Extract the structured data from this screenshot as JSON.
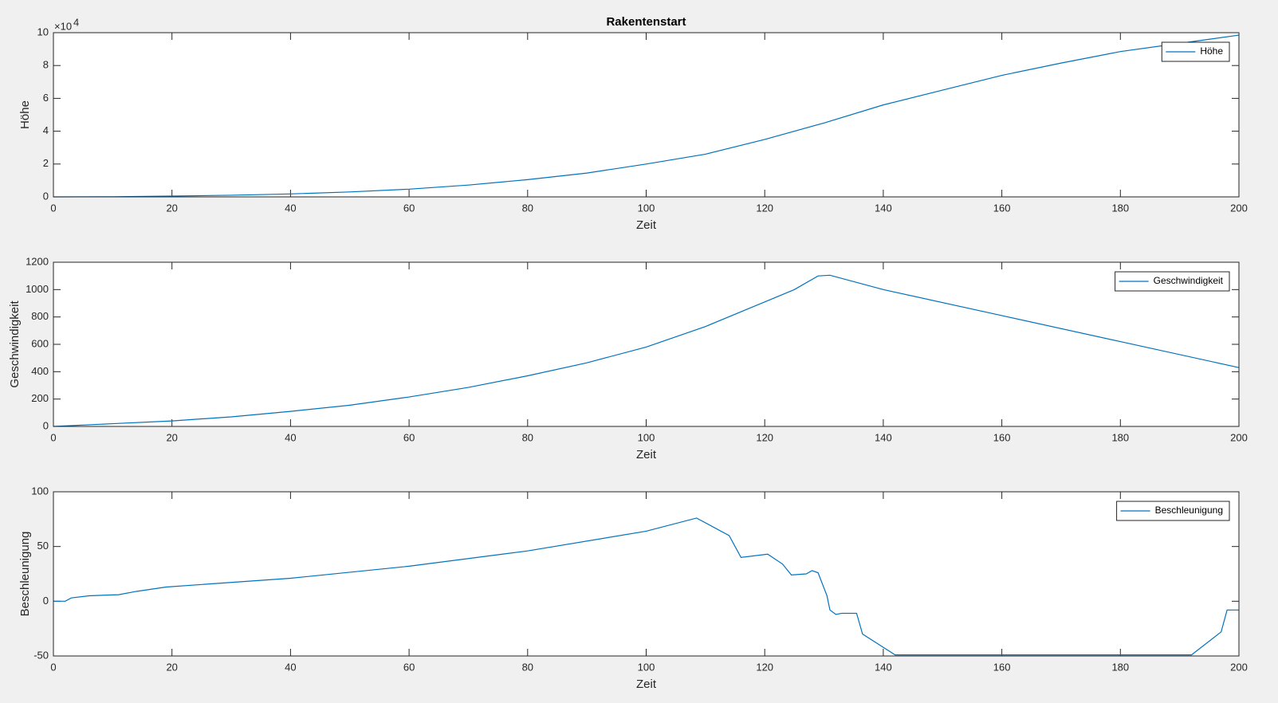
{
  "chart_data": [
    {
      "type": "line",
      "title": "Rakentenstart",
      "xlabel": "Zeit",
      "ylabel": "Höhe",
      "yexponent_base": "×10",
      "yexponent": "4",
      "x": [
        0,
        10,
        20,
        30,
        40,
        50,
        60,
        70,
        80,
        90,
        100,
        110,
        120,
        130,
        140,
        150,
        160,
        170,
        180,
        190,
        200
      ],
      "series": [
        {
          "name": "Höhe",
          "color": "#0072bd",
          "values": [
            0,
            0.01,
            0.05,
            0.1,
            0.18,
            0.3,
            0.47,
            0.72,
            1.05,
            1.45,
            2.0,
            2.6,
            3.5,
            4.5,
            5.6,
            6.5,
            7.4,
            8.15,
            8.85,
            9.35,
            9.85
          ]
        }
      ],
      "xlim": [
        0,
        200
      ],
      "xticks": [
        0,
        20,
        40,
        60,
        80,
        100,
        120,
        140,
        160,
        180,
        200
      ],
      "ylim": [
        0,
        10
      ],
      "yticks": [
        0,
        2,
        4,
        6,
        8,
        10
      ],
      "grid": false,
      "legend": "northeast"
    },
    {
      "type": "line",
      "xlabel": "Zeit",
      "ylabel": "Geschwindigkeit",
      "x": [
        0,
        10,
        20,
        30,
        40,
        50,
        60,
        70,
        80,
        90,
        100,
        110,
        120,
        125,
        129,
        131,
        140,
        160,
        180,
        200
      ],
      "series": [
        {
          "name": "Geschwindigkeit",
          "color": "#0072bd",
          "values": [
            0,
            20,
            40,
            70,
            110,
            155,
            215,
            285,
            370,
            465,
            580,
            730,
            910,
            1000,
            1100,
            1105,
            1000,
            810,
            620,
            430
          ]
        }
      ],
      "xlim": [
        0,
        200
      ],
      "xticks": [
        0,
        20,
        40,
        60,
        80,
        100,
        120,
        140,
        160,
        180,
        200
      ],
      "ylim": [
        0,
        1200
      ],
      "yticks": [
        0,
        200,
        400,
        600,
        800,
        1000,
        1200
      ],
      "grid": false,
      "legend": "northeast"
    },
    {
      "type": "line",
      "xlabel": "Zeit",
      "ylabel": "Beschleunigung",
      "x": [
        0,
        2,
        3,
        6,
        11,
        14,
        19,
        40,
        60,
        80,
        100,
        108.5,
        114,
        116,
        120.5,
        123,
        124.5,
        127,
        128,
        129,
        130.5,
        131,
        132,
        133,
        135.5,
        136.5,
        142,
        192,
        197,
        198,
        200
      ],
      "series": [
        {
          "name": "Beschleunigung",
          "color": "#0072bd",
          "values": [
            0,
            0,
            3,
            5,
            6,
            9,
            13,
            21,
            32,
            46,
            64,
            76,
            60,
            40,
            43,
            34,
            24,
            25,
            28,
            26,
            5,
            -8,
            -12,
            -11,
            -11,
            -30,
            -49,
            -49,
            -28,
            -8,
            -8
          ]
        }
      ],
      "xlim": [
        0,
        200
      ],
      "xticks": [
        0,
        20,
        40,
        60,
        80,
        100,
        120,
        140,
        160,
        180,
        200
      ],
      "ylim": [
        -50,
        100
      ],
      "yticks": [
        -50,
        0,
        50,
        100
      ],
      "grid": false,
      "legend": "northeast"
    }
  ]
}
